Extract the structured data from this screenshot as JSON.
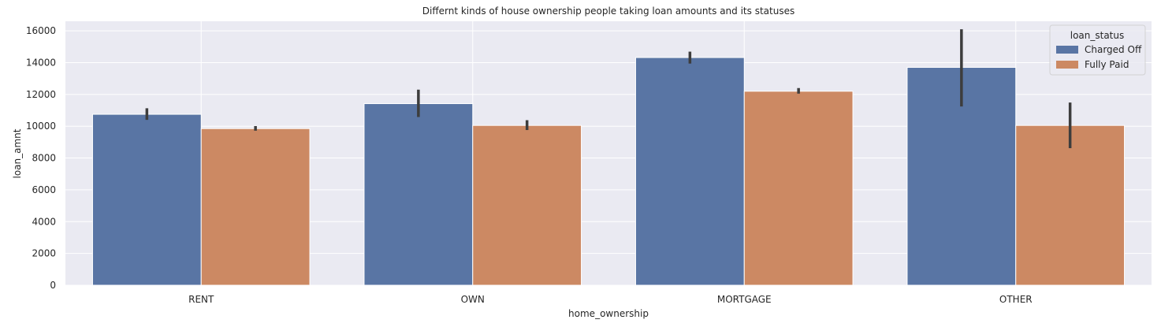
{
  "chart_data": {
    "type": "bar",
    "title": "Differnt kinds of house ownership people taking loan amounts and its statuses",
    "xlabel": "home_ownership",
    "ylabel": "loan_amnt",
    "categories": [
      "RENT",
      "OWN",
      "MORTGAGE",
      "OTHER"
    ],
    "ylim": [
      0,
      16600
    ],
    "yticks": [
      0,
      2000,
      4000,
      6000,
      8000,
      10000,
      12000,
      14000,
      16000
    ],
    "grid": true,
    "legend": {
      "title": "loan_status",
      "placement": "top-right"
    },
    "series": [
      {
        "name": "Charged Off",
        "color": "#5975a4",
        "values": [
          10750,
          11420,
          14320,
          13700
        ],
        "ci": [
          [
            10400,
            11130
          ],
          [
            10580,
            12300
          ],
          [
            13940,
            14690
          ],
          [
            11240,
            16100
          ]
        ]
      },
      {
        "name": "Fully Paid",
        "color": "#cc8963",
        "values": [
          9850,
          10050,
          12200,
          10050
        ],
        "ci": [
          [
            9720,
            10010
          ],
          [
            9760,
            10380
          ],
          [
            12050,
            12400
          ],
          [
            8620,
            11490
          ]
        ]
      }
    ]
  }
}
